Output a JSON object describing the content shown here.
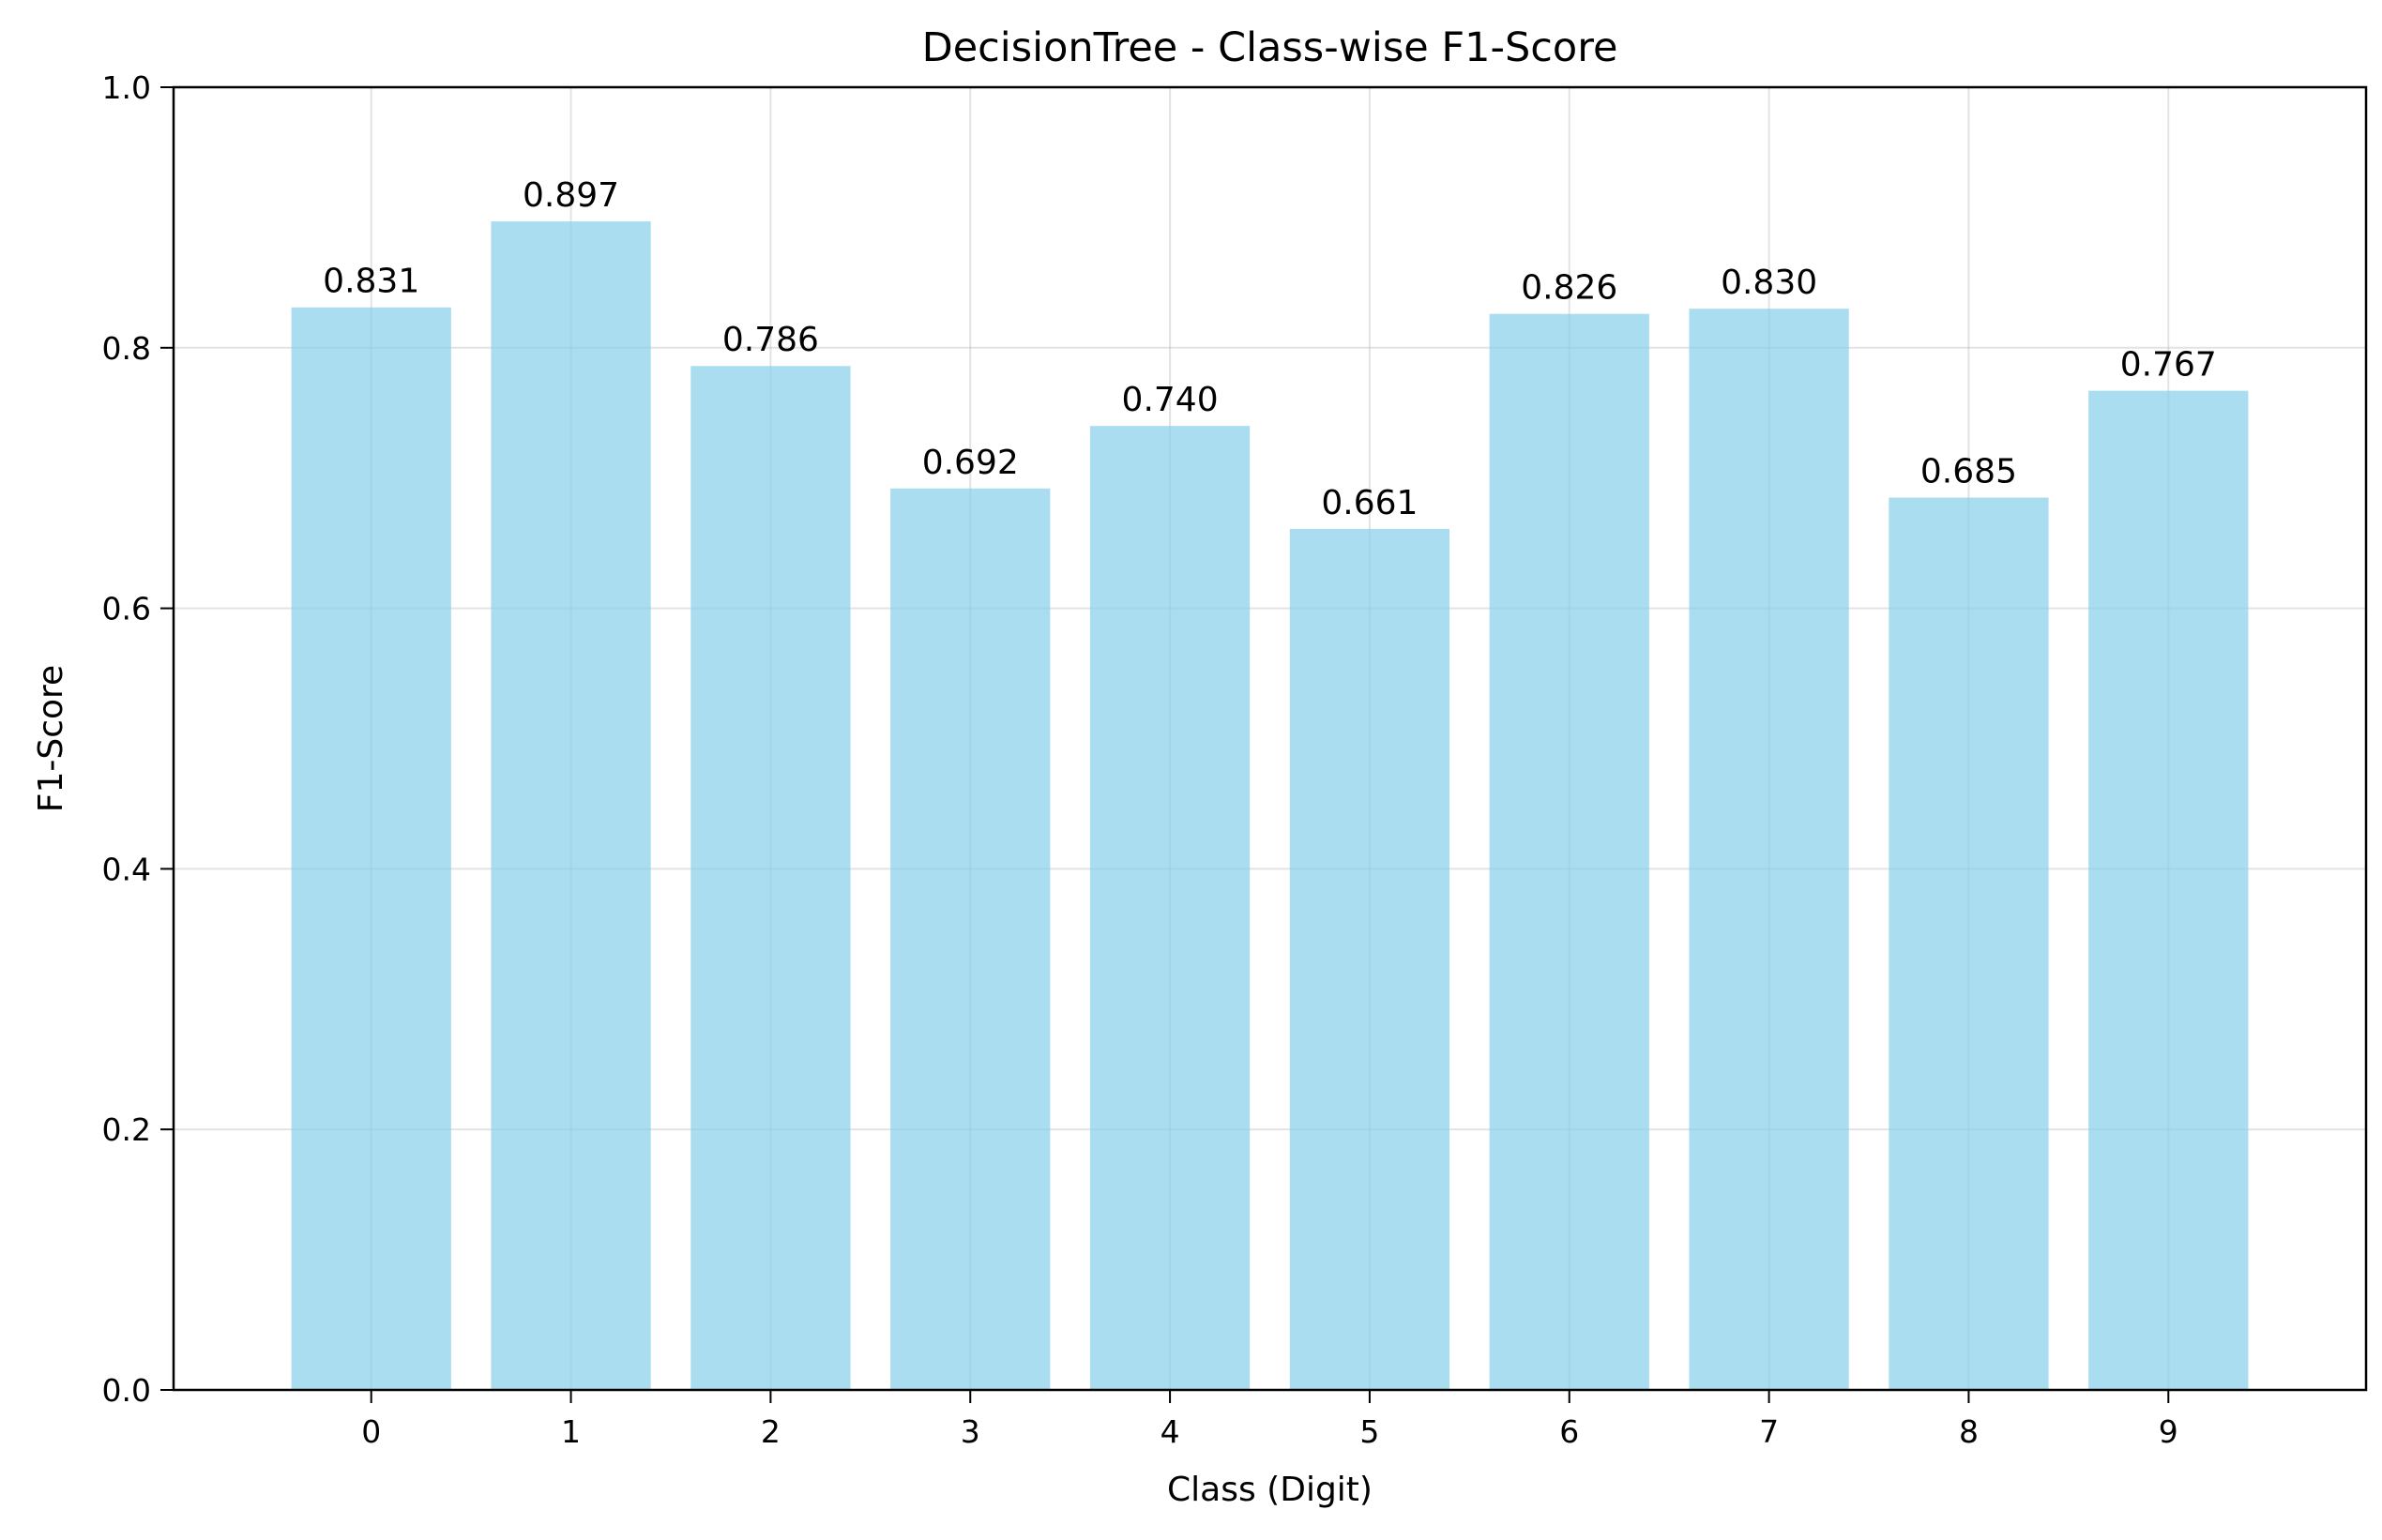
{
  "chart_data": {
    "type": "bar",
    "title": "DecisionTree - Class-wise F1-Score",
    "xlabel": "Class (Digit)",
    "ylabel": "F1-Score",
    "categories": [
      "0",
      "1",
      "2",
      "3",
      "4",
      "5",
      "6",
      "7",
      "8",
      "9"
    ],
    "values": [
      0.831,
      0.897,
      0.786,
      0.692,
      0.74,
      0.661,
      0.826,
      0.83,
      0.685,
      0.767
    ],
    "value_labels": [
      "0.831",
      "0.897",
      "0.786",
      "0.692",
      "0.740",
      "0.661",
      "0.826",
      "0.830",
      "0.685",
      "0.767"
    ],
    "ylim": [
      0,
      1.0
    ],
    "yticks": [
      "0.0",
      "0.2",
      "0.4",
      "0.6",
      "0.8",
      "1.0"
    ],
    "grid": true,
    "bar_color": "#87ceeb",
    "bar_opacity": 0.7
  }
}
